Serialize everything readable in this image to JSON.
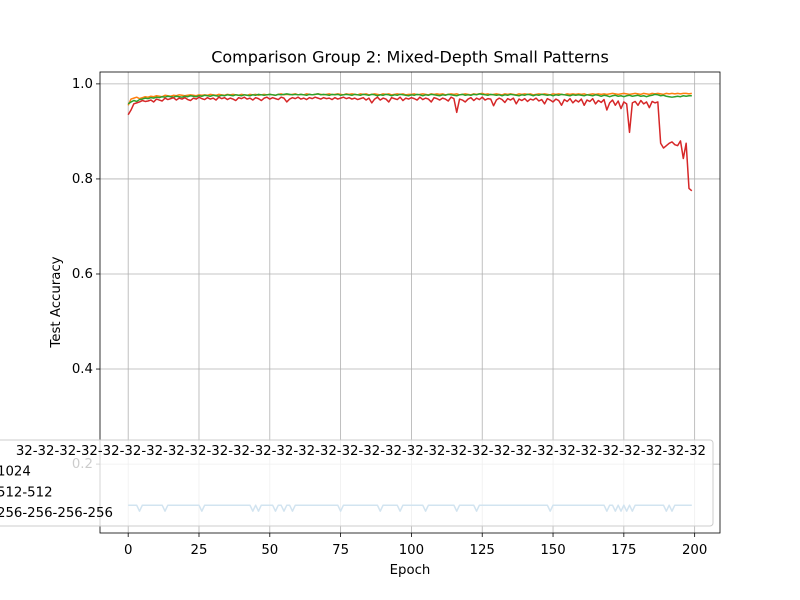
{
  "chart_data": {
    "type": "line",
    "title": "Comparison Group 2: Mixed-Depth Small Patterns",
    "x_label": "Epoch",
    "y_label": "Test Accuracy",
    "xlim": [
      -9.95,
      208.95
    ],
    "ylim": [
      0.055,
      1.025
    ],
    "xticks": [
      0,
      25,
      50,
      75,
      100,
      125,
      150,
      175,
      200
    ],
    "yticks": [
      0.2,
      0.4,
      0.6,
      0.8,
      {
        "value": 1,
        "label": "1.0"
      }
    ],
    "grid": true,
    "legend": "lower right",
    "x": [
      0,
      1,
      2,
      3,
      4,
      5,
      6,
      7,
      8,
      9,
      10,
      11,
      12,
      13,
      14,
      15,
      16,
      17,
      18,
      19,
      20,
      21,
      22,
      23,
      24,
      25,
      26,
      27,
      28,
      29,
      30,
      31,
      32,
      33,
      34,
      35,
      36,
      37,
      38,
      39,
      40,
      41,
      42,
      43,
      44,
      45,
      46,
      47,
      48,
      49,
      50,
      51,
      52,
      53,
      54,
      55,
      56,
      57,
      58,
      59,
      60,
      61,
      62,
      63,
      64,
      65,
      66,
      67,
      68,
      69,
      70,
      71,
      72,
      73,
      74,
      75,
      76,
      77,
      78,
      79,
      80,
      81,
      82,
      83,
      84,
      85,
      86,
      87,
      88,
      89,
      90,
      91,
      92,
      93,
      94,
      95,
      96,
      97,
      98,
      99,
      100,
      101,
      102,
      103,
      104,
      105,
      106,
      107,
      108,
      109,
      110,
      111,
      112,
      113,
      114,
      115,
      116,
      117,
      118,
      119,
      120,
      121,
      122,
      123,
      124,
      125,
      126,
      127,
      128,
      129,
      130,
      131,
      132,
      133,
      134,
      135,
      136,
      137,
      138,
      139,
      140,
      141,
      142,
      143,
      144,
      145,
      146,
      147,
      148,
      149,
      150,
      151,
      152,
      153,
      154,
      155,
      156,
      157,
      158,
      159,
      160,
      161,
      162,
      163,
      164,
      165,
      166,
      167,
      168,
      169,
      170,
      171,
      172,
      173,
      174,
      175,
      176,
      177,
      178,
      179,
      180,
      181,
      182,
      183,
      184,
      185,
      186,
      187,
      188,
      189,
      190,
      191,
      192,
      193,
      194,
      195,
      196,
      197,
      198,
      199
    ],
    "series": [
      {
        "name": "32-32-32-32-32-32-32-32-32-32-32-32-32-32-32-32-32-32-32-32-32-32-32-32-32-32-32-32-32-32-32-32",
        "color": "#1f77b4",
        "values": [
          0.1135,
          0.1135,
          0.1135,
          0.1135,
          0.101,
          0.1135,
          0.1135,
          0.1135,
          0.1135,
          0.1135,
          0.1135,
          0.1135,
          0.1135,
          0.101,
          0.1135,
          0.1135,
          0.1135,
          0.1135,
          0.1135,
          0.1135,
          0.1135,
          0.1135,
          0.1135,
          0.1135,
          0.1135,
          0.1135,
          0.101,
          0.1135,
          0.1135,
          0.1135,
          0.1135,
          0.1135,
          0.1135,
          0.1135,
          0.1135,
          0.1135,
          0.1135,
          0.1135,
          0.1135,
          0.1135,
          0.1135,
          0.1135,
          0.1135,
          0.1135,
          0.101,
          0.1135,
          0.101,
          0.1135,
          0.1135,
          0.1135,
          0.1135,
          0.1135,
          0.101,
          0.1135,
          0.1135,
          0.101,
          0.1135,
          0.1135,
          0.101,
          0.1135,
          0.1135,
          0.1135,
          0.1135,
          0.1135,
          0.1135,
          0.1135,
          0.1135,
          0.1135,
          0.1135,
          0.1135,
          0.1135,
          0.1135,
          0.1135,
          0.1135,
          0.1135,
          0.101,
          0.1135,
          0.1135,
          0.1135,
          0.1135,
          0.1135,
          0.1135,
          0.1135,
          0.1135,
          0.1135,
          0.1135,
          0.1135,
          0.1135,
          0.1135,
          0.101,
          0.1135,
          0.1135,
          0.1135,
          0.1135,
          0.1135,
          0.1135,
          0.101,
          0.1135,
          0.1135,
          0.1135,
          0.1135,
          0.1135,
          0.1135,
          0.1135,
          0.1135,
          0.101,
          0.1135,
          0.1135,
          0.1135,
          0.1135,
          0.1135,
          0.1135,
          0.1135,
          0.1135,
          0.1135,
          0.1135,
          0.101,
          0.1135,
          0.1135,
          0.1135,
          0.1135,
          0.1135,
          0.1135,
          0.101,
          0.1135,
          0.1135,
          0.1135,
          0.1135,
          0.1135,
          0.1135,
          0.1135,
          0.1135,
          0.1135,
          0.1135,
          0.1135,
          0.1135,
          0.1135,
          0.1135,
          0.1135,
          0.1135,
          0.1135,
          0.1135,
          0.1135,
          0.1135,
          0.1135,
          0.1135,
          0.1135,
          0.1135,
          0.1135,
          0.101,
          0.1135,
          0.1135,
          0.1135,
          0.1135,
          0.1135,
          0.1135,
          0.1135,
          0.1135,
          0.1135,
          0.1135,
          0.1135,
          0.1135,
          0.1135,
          0.1135,
          0.1135,
          0.1135,
          0.1135,
          0.1135,
          0.1135,
          0.101,
          0.1135,
          0.1135,
          0.101,
          0.1135,
          0.101,
          0.1135,
          0.101,
          0.1135,
          0.101,
          0.1135,
          0.1135,
          0.1135,
          0.1135,
          0.1135,
          0.1135,
          0.1135,
          0.1135,
          0.1135,
          0.1135,
          0.1135,
          0.101,
          0.1135,
          0.101,
          0.1135,
          0.1135,
          0.1135,
          0.1135,
          0.1135,
          0.1135,
          0.1135
        ]
      },
      {
        "name": "1024",
        "color": "#ff7f0e",
        "values": [
          0.955,
          0.968,
          0.97,
          0.972,
          0.969,
          0.971,
          0.973,
          0.972,
          0.974,
          0.973,
          0.975,
          0.974,
          0.973,
          0.976,
          0.975,
          0.974,
          0.976,
          0.975,
          0.977,
          0.976,
          0.975,
          0.976,
          0.977,
          0.976,
          0.975,
          0.977,
          0.976,
          0.977,
          0.976,
          0.978,
          0.977,
          0.976,
          0.978,
          0.977,
          0.976,
          0.978,
          0.977,
          0.978,
          0.977,
          0.976,
          0.978,
          0.977,
          0.976,
          0.978,
          0.977,
          0.978,
          0.976,
          0.977,
          0.978,
          0.977,
          0.978,
          0.977,
          0.976,
          0.978,
          0.979,
          0.977,
          0.978,
          0.977,
          0.978,
          0.979,
          0.977,
          0.978,
          0.977,
          0.979,
          0.978,
          0.977,
          0.978,
          0.979,
          0.978,
          0.977,
          0.978,
          0.979,
          0.977,
          0.978,
          0.979,
          0.978,
          0.977,
          0.979,
          0.978,
          0.979,
          0.978,
          0.977,
          0.979,
          0.978,
          0.979,
          0.977,
          0.978,
          0.979,
          0.978,
          0.977,
          0.979,
          0.978,
          0.979,
          0.977,
          0.978,
          0.979,
          0.978,
          0.979,
          0.977,
          0.978,
          0.978,
          0.979,
          0.977,
          0.978,
          0.979,
          0.978,
          0.977,
          0.979,
          0.978,
          0.979,
          0.978,
          0.979,
          0.977,
          0.978,
          0.979,
          0.978,
          0.979,
          0.977,
          0.978,
          0.979,
          0.978,
          0.977,
          0.979,
          0.978,
          0.979,
          0.98,
          0.978,
          0.979,
          0.977,
          0.978,
          0.979,
          0.978,
          0.977,
          0.979,
          0.978,
          0.979,
          0.978,
          0.977,
          0.979,
          0.978,
          0.979,
          0.978,
          0.979,
          0.977,
          0.978,
          0.979,
          0.978,
          0.979,
          0.978,
          0.977,
          0.979,
          0.978,
          0.979,
          0.978,
          0.977,
          0.979,
          0.978,
          0.979,
          0.978,
          0.979,
          0.978,
          0.979,
          0.977,
          0.978,
          0.979,
          0.978,
          0.979,
          0.978,
          0.979,
          0.978,
          0.979,
          0.98,
          0.979,
          0.978,
          0.979,
          0.98,
          0.979,
          0.978,
          0.979,
          0.98,
          0.979,
          0.978,
          0.98,
          0.979,
          0.978,
          0.98,
          0.979,
          0.98,
          0.979,
          0.978,
          0.98,
          0.979,
          0.98,
          0.979,
          0.98,
          0.979,
          0.98,
          0.98,
          0.979,
          0.98
        ]
      },
      {
        "name": "512-512",
        "color": "#2ca02c",
        "values": [
          0.958,
          0.962,
          0.965,
          0.963,
          0.967,
          0.968,
          0.97,
          0.969,
          0.971,
          0.97,
          0.972,
          0.971,
          0.973,
          0.972,
          0.974,
          0.973,
          0.972,
          0.974,
          0.973,
          0.972,
          0.974,
          0.973,
          0.975,
          0.974,
          0.973,
          0.975,
          0.974,
          0.976,
          0.975,
          0.974,
          0.976,
          0.975,
          0.974,
          0.976,
          0.975,
          0.977,
          0.976,
          0.975,
          0.977,
          0.976,
          0.975,
          0.977,
          0.976,
          0.975,
          0.977,
          0.976,
          0.978,
          0.977,
          0.976,
          0.977,
          0.978,
          0.977,
          0.976,
          0.978,
          0.977,
          0.978,
          0.979,
          0.978,
          0.977,
          0.978,
          0.977,
          0.978,
          0.977,
          0.976,
          0.978,
          0.977,
          0.978,
          0.979,
          0.977,
          0.978,
          0.977,
          0.976,
          0.978,
          0.977,
          0.978,
          0.976,
          0.977,
          0.978,
          0.977,
          0.976,
          0.978,
          0.977,
          0.976,
          0.978,
          0.977,
          0.976,
          0.978,
          0.977,
          0.975,
          0.977,
          0.976,
          0.978,
          0.977,
          0.975,
          0.977,
          0.976,
          0.978,
          0.977,
          0.976,
          0.975,
          0.977,
          0.976,
          0.978,
          0.977,
          0.975,
          0.977,
          0.976,
          0.978,
          0.977,
          0.976,
          0.975,
          0.977,
          0.976,
          0.978,
          0.977,
          0.976,
          0.975,
          0.977,
          0.978,
          0.976,
          0.977,
          0.976,
          0.978,
          0.977,
          0.979,
          0.978,
          0.977,
          0.976,
          0.978,
          0.977,
          0.976,
          0.977,
          0.975,
          0.977,
          0.976,
          0.978,
          0.977,
          0.976,
          0.975,
          0.977,
          0.976,
          0.978,
          0.977,
          0.975,
          0.977,
          0.976,
          0.978,
          0.977,
          0.976,
          0.977,
          0.975,
          0.977,
          0.976,
          0.978,
          0.977,
          0.976,
          0.975,
          0.977,
          0.976,
          0.977,
          0.976,
          0.975,
          0.977,
          0.976,
          0.975,
          0.977,
          0.976,
          0.974,
          0.976,
          0.975,
          0.973,
          0.975,
          0.976,
          0.974,
          0.975,
          0.973,
          0.975,
          0.976,
          0.974,
          0.975,
          0.976,
          0.974,
          0.975,
          0.973,
          0.975,
          0.976,
          0.978,
          0.977,
          0.975,
          0.976,
          0.974,
          0.973,
          0.972,
          0.973,
          0.974,
          0.973,
          0.975,
          0.974,
          0.975,
          0.975
        ]
      },
      {
        "name": "256-256-256-256",
        "color": "#d62728",
        "values": [
          0.935,
          0.945,
          0.958,
          0.96,
          0.962,
          0.965,
          0.963,
          0.964,
          0.966,
          0.962,
          0.968,
          0.966,
          0.964,
          0.97,
          0.967,
          0.969,
          0.971,
          0.966,
          0.97,
          0.968,
          0.971,
          0.967,
          0.965,
          0.97,
          0.968,
          0.972,
          0.969,
          0.967,
          0.971,
          0.968,
          0.97,
          0.966,
          0.972,
          0.969,
          0.971,
          0.967,
          0.97,
          0.968,
          0.965,
          0.971,
          0.969,
          0.972,
          0.968,
          0.97,
          0.966,
          0.971,
          0.969,
          0.965,
          0.97,
          0.972,
          0.968,
          0.971,
          0.969,
          0.967,
          0.972,
          0.97,
          0.962,
          0.968,
          0.971,
          0.969,
          0.972,
          0.968,
          0.97,
          0.967,
          0.971,
          0.969,
          0.972,
          0.97,
          0.968,
          0.971,
          0.969,
          0.97,
          0.967,
          0.971,
          0.968,
          0.97,
          0.972,
          0.969,
          0.971,
          0.968,
          0.97,
          0.967,
          0.969,
          0.971,
          0.966,
          0.97,
          0.96,
          0.968,
          0.972,
          0.966,
          0.97,
          0.968,
          0.962,
          0.971,
          0.969,
          0.967,
          0.972,
          0.965,
          0.97,
          0.968,
          0.971,
          0.969,
          0.966,
          0.972,
          0.967,
          0.97,
          0.968,
          0.962,
          0.971,
          0.969,
          0.966,
          0.97,
          0.968,
          0.964,
          0.972,
          0.969,
          0.94,
          0.968,
          0.966,
          0.962,
          0.968,
          0.971,
          0.965,
          0.97,
          0.967,
          0.972,
          0.966,
          0.969,
          0.968,
          0.954,
          0.966,
          0.97,
          0.967,
          0.961,
          0.969,
          0.966,
          0.97,
          0.958,
          0.968,
          0.965,
          0.969,
          0.963,
          0.968,
          0.966,
          0.97,
          0.964,
          0.967,
          0.958,
          0.969,
          0.966,
          0.962,
          0.968,
          0.965,
          0.955,
          0.967,
          0.963,
          0.969,
          0.96,
          0.966,
          0.962,
          0.968,
          0.955,
          0.966,
          0.963,
          0.969,
          0.958,
          0.965,
          0.961,
          0.967,
          0.945,
          0.96,
          0.966,
          0.955,
          0.964,
          0.948,
          0.962,
          0.958,
          0.898,
          0.96,
          0.963,
          0.955,
          0.965,
          0.958,
          0.962,
          0.95,
          0.963,
          0.96,
          0.962,
          0.875,
          0.865,
          0.87,
          0.875,
          0.878,
          0.872,
          0.87,
          0.88,
          0.843,
          0.875,
          0.78,
          0.775
        ]
      }
    ]
  }
}
